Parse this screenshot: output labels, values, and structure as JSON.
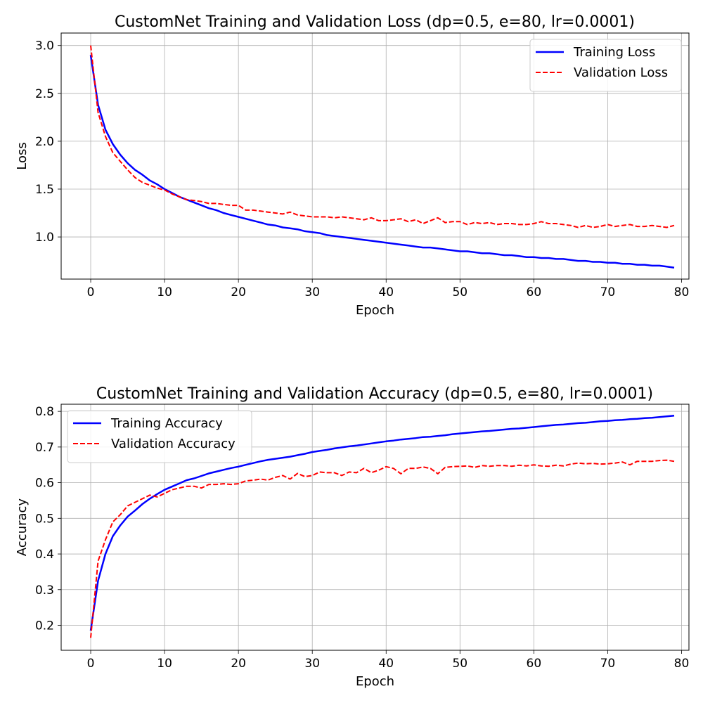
{
  "chart_data": [
    {
      "type": "line",
      "title": "CustomNet Training and Validation Loss (dp=0.5, e=80, lr=0.0001)",
      "xlabel": "Epoch",
      "ylabel": "Loss",
      "xlim": [
        -4,
        81
      ],
      "ylim": [
        0.56,
        3.13
      ],
      "xticks": [
        "0",
        "10",
        "20",
        "30",
        "40",
        "50",
        "60",
        "70",
        "80"
      ],
      "yticks": [
        "1.0",
        "1.5",
        "2.0",
        "2.5",
        "3.0"
      ],
      "grid": true,
      "legend_position": "top-right",
      "series": [
        {
          "name": "Training Loss",
          "color": "#0000ff",
          "style": "solid",
          "values": [
            2.9,
            2.38,
            2.12,
            1.97,
            1.86,
            1.77,
            1.7,
            1.65,
            1.59,
            1.55,
            1.5,
            1.46,
            1.42,
            1.39,
            1.36,
            1.33,
            1.3,
            1.28,
            1.25,
            1.23,
            1.21,
            1.19,
            1.17,
            1.15,
            1.13,
            1.12,
            1.1,
            1.09,
            1.08,
            1.06,
            1.05,
            1.04,
            1.02,
            1.01,
            1.0,
            0.99,
            0.98,
            0.97,
            0.96,
            0.95,
            0.94,
            0.93,
            0.92,
            0.91,
            0.9,
            0.89,
            0.89,
            0.88,
            0.87,
            0.86,
            0.85,
            0.85,
            0.84,
            0.83,
            0.83,
            0.82,
            0.81,
            0.81,
            0.8,
            0.79,
            0.79,
            0.78,
            0.78,
            0.77,
            0.77,
            0.76,
            0.75,
            0.75,
            0.74,
            0.74,
            0.73,
            0.73,
            0.72,
            0.72,
            0.71,
            0.71,
            0.7,
            0.7,
            0.69,
            0.68
          ]
        },
        {
          "name": "Validation Loss",
          "color": "#ff0000",
          "style": "dashed",
          "values": [
            3.0,
            2.3,
            2.05,
            1.88,
            1.79,
            1.7,
            1.62,
            1.57,
            1.54,
            1.51,
            1.49,
            1.45,
            1.42,
            1.39,
            1.38,
            1.37,
            1.35,
            1.35,
            1.34,
            1.33,
            1.33,
            1.28,
            1.28,
            1.27,
            1.26,
            1.25,
            1.24,
            1.26,
            1.23,
            1.22,
            1.21,
            1.21,
            1.21,
            1.2,
            1.21,
            1.2,
            1.19,
            1.18,
            1.2,
            1.17,
            1.17,
            1.18,
            1.19,
            1.16,
            1.18,
            1.14,
            1.17,
            1.2,
            1.15,
            1.16,
            1.16,
            1.13,
            1.15,
            1.14,
            1.15,
            1.13,
            1.14,
            1.14,
            1.13,
            1.13,
            1.14,
            1.16,
            1.14,
            1.14,
            1.13,
            1.12,
            1.1,
            1.12,
            1.1,
            1.11,
            1.13,
            1.11,
            1.12,
            1.13,
            1.11,
            1.11,
            1.12,
            1.11,
            1.1,
            1.12
          ]
        }
      ]
    },
    {
      "type": "line",
      "title": "CustomNet Training and Validation Accuracy (dp=0.5, e=80, lr=0.0001)",
      "xlabel": "Epoch",
      "ylabel": "Accuracy",
      "xlim": [
        -4,
        81
      ],
      "ylim": [
        0.13,
        0.82
      ],
      "xticks": [
        "0",
        "10",
        "20",
        "30",
        "40",
        "50",
        "60",
        "70",
        "80"
      ],
      "yticks": [
        "0.2",
        "0.3",
        "0.4",
        "0.5",
        "0.6",
        "0.7",
        "0.8"
      ],
      "grid": true,
      "legend_position": "top-left",
      "series": [
        {
          "name": "Training Accuracy",
          "color": "#0000ff",
          "style": "solid",
          "values": [
            0.185,
            0.325,
            0.4,
            0.45,
            0.48,
            0.505,
            0.522,
            0.54,
            0.555,
            0.568,
            0.58,
            0.589,
            0.598,
            0.607,
            0.612,
            0.619,
            0.626,
            0.631,
            0.636,
            0.641,
            0.645,
            0.65,
            0.655,
            0.66,
            0.664,
            0.667,
            0.67,
            0.673,
            0.677,
            0.681,
            0.686,
            0.689,
            0.692,
            0.696,
            0.699,
            0.702,
            0.704,
            0.707,
            0.71,
            0.713,
            0.716,
            0.718,
            0.721,
            0.723,
            0.725,
            0.728,
            0.729,
            0.731,
            0.733,
            0.736,
            0.738,
            0.74,
            0.742,
            0.744,
            0.745,
            0.747,
            0.749,
            0.751,
            0.752,
            0.754,
            0.756,
            0.758,
            0.76,
            0.762,
            0.763,
            0.765,
            0.767,
            0.768,
            0.77,
            0.772,
            0.773,
            0.775,
            0.776,
            0.778,
            0.779,
            0.781,
            0.782,
            0.784,
            0.786,
            0.788
          ]
        },
        {
          "name": "Validation Accuracy",
          "color": "#ff0000",
          "style": "dashed",
          "values": [
            0.165,
            0.38,
            0.44,
            0.49,
            0.51,
            0.535,
            0.545,
            0.555,
            0.565,
            0.56,
            0.57,
            0.58,
            0.585,
            0.59,
            0.59,
            0.585,
            0.595,
            0.595,
            0.597,
            0.595,
            0.597,
            0.605,
            0.607,
            0.61,
            0.607,
            0.615,
            0.62,
            0.61,
            0.626,
            0.617,
            0.62,
            0.63,
            0.628,
            0.628,
            0.62,
            0.63,
            0.628,
            0.64,
            0.628,
            0.635,
            0.645,
            0.64,
            0.625,
            0.64,
            0.64,
            0.644,
            0.64,
            0.625,
            0.643,
            0.645,
            0.646,
            0.647,
            0.643,
            0.648,
            0.646,
            0.648,
            0.648,
            0.646,
            0.649,
            0.647,
            0.65,
            0.647,
            0.646,
            0.649,
            0.647,
            0.652,
            0.655,
            0.653,
            0.654,
            0.652,
            0.653,
            0.655,
            0.658,
            0.65,
            0.66,
            0.66,
            0.66,
            0.662,
            0.663,
            0.66
          ]
        }
      ]
    }
  ]
}
